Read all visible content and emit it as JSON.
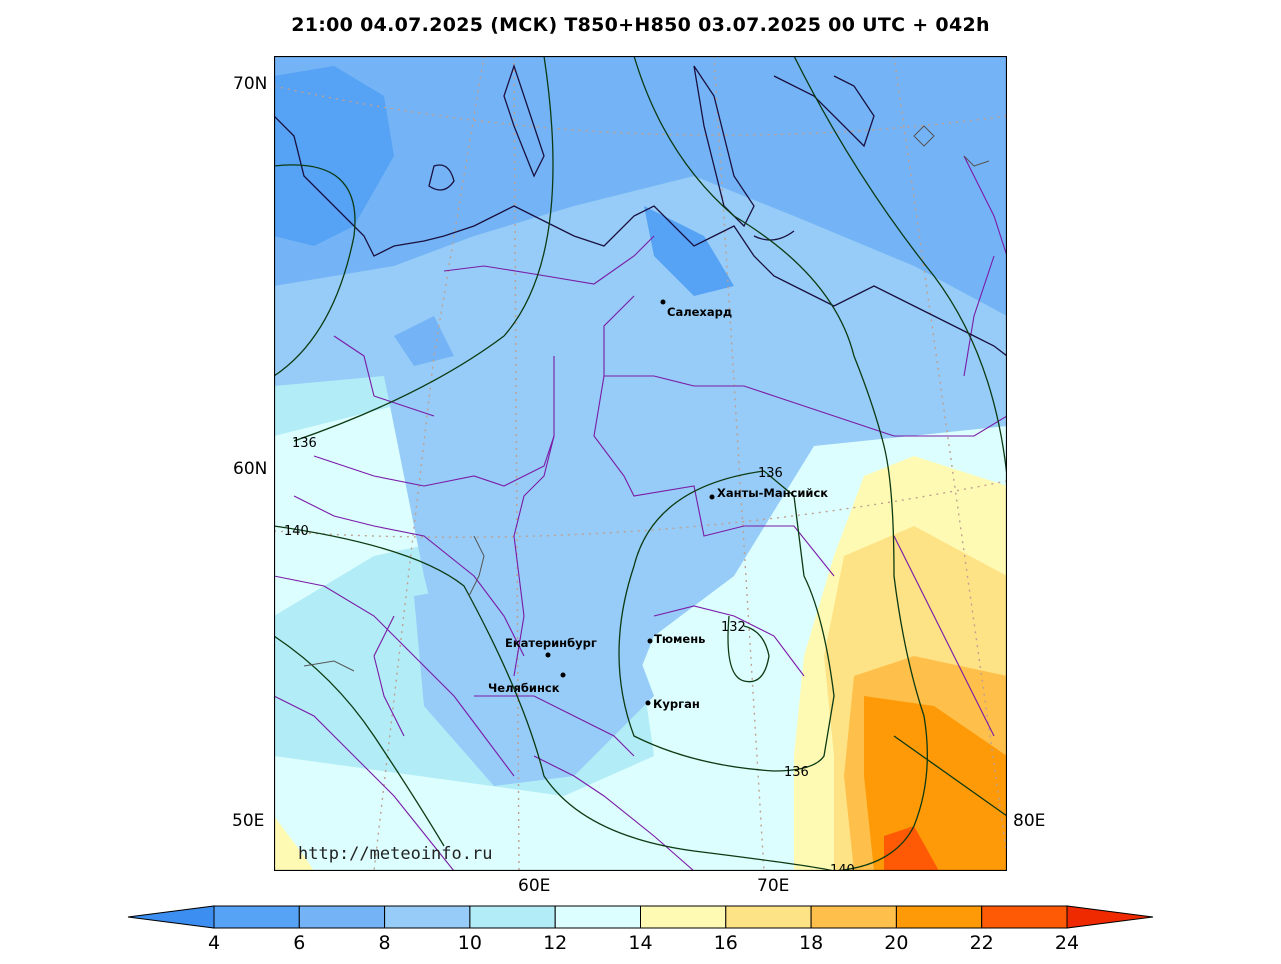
{
  "title": "21:00 04.07.2025 (МСК) T850+H850 03.07.2025 00 UTC + 042h",
  "axes": {
    "lat_labels": [
      "70N",
      "60N"
    ],
    "lon_labels": [
      "50E",
      "60E",
      "70E",
      "80E"
    ]
  },
  "cities": [
    {
      "name": "Салехард"
    },
    {
      "name": "Ханты-Мансийск"
    },
    {
      "name": "Тюмень"
    },
    {
      "name": "Екатеринбург"
    },
    {
      "name": "Челябинск"
    },
    {
      "name": "Курган"
    }
  ],
  "contour_labels": [
    "136",
    "140",
    "136",
    "132",
    "136",
    "140"
  ],
  "watermark": "http://meteoinfo.ru",
  "colorbar": {
    "ticks": [
      "4",
      "6",
      "8",
      "10",
      "12",
      "14",
      "16",
      "18",
      "20",
      "22",
      "24"
    ],
    "colors": [
      "#3c8ff0",
      "#56a2f4",
      "#74b4f6",
      "#96ccf7",
      "#b2ecf7",
      "#dcfefe",
      "#fefab4",
      "#fee286",
      "#fec04a",
      "#fe9a08",
      "#fe5a05",
      "#f02a00"
    ]
  },
  "colors": {
    "contour": "#0c3a12",
    "border": "#7a1aa6",
    "coast": "#1a1040",
    "grid": "#c0a090"
  }
}
